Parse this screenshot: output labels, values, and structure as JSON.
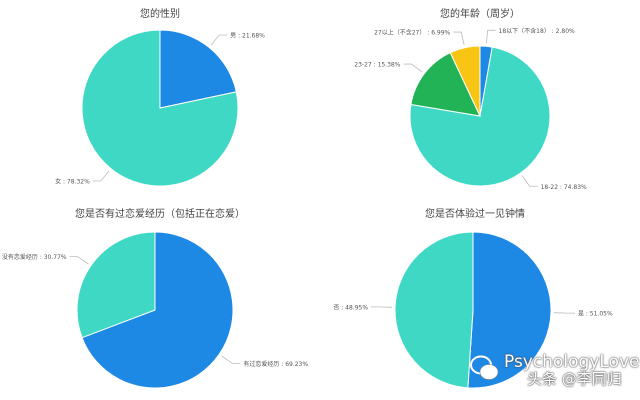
{
  "chart_data": [
    {
      "type": "pie",
      "title": "您的性别",
      "start": "12 o'clock clockwise",
      "slices": [
        {
          "label": "男",
          "value": 21.68,
          "color": "#1e88e5"
        },
        {
          "label": "女",
          "value": 78.32,
          "color": "#3fd8c5"
        }
      ]
    },
    {
      "type": "pie",
      "title": "您的年龄（周岁）",
      "start": "12 o'clock clockwise",
      "slices": [
        {
          "label": "18以下（不含18）",
          "value": 2.8,
          "color": "#1e88e5"
        },
        {
          "label": "18-22",
          "value": 74.83,
          "color": "#3fd8c5"
        },
        {
          "label": "23-27",
          "value": 15.38,
          "color": "#22b357"
        },
        {
          "label": "27以上（不含27）",
          "value": 6.99,
          "color": "#f8c515"
        }
      ]
    },
    {
      "type": "pie",
      "title": "您是否有过恋爱经历（包括正在恋爱）",
      "start": "12 o'clock clockwise",
      "slices": [
        {
          "label": "有过恋爱经历",
          "value": 69.23,
          "color": "#1e88e5"
        },
        {
          "label": "没有恋爱经历",
          "value": 30.77,
          "color": "#3fd8c5"
        }
      ]
    },
    {
      "type": "pie",
      "title": "您是否体验过一见钟情",
      "start": "12 o'clock clockwise",
      "slices": [
        {
          "label": "是",
          "value": 51.05,
          "color": "#1e88e5"
        },
        {
          "label": "否",
          "value": 48.95,
          "color": "#3fd8c5"
        }
      ]
    }
  ],
  "watermark": {
    "line1": "PsychologyLove",
    "line2": "头条 @李同归",
    "icon": "wechat-icon"
  }
}
